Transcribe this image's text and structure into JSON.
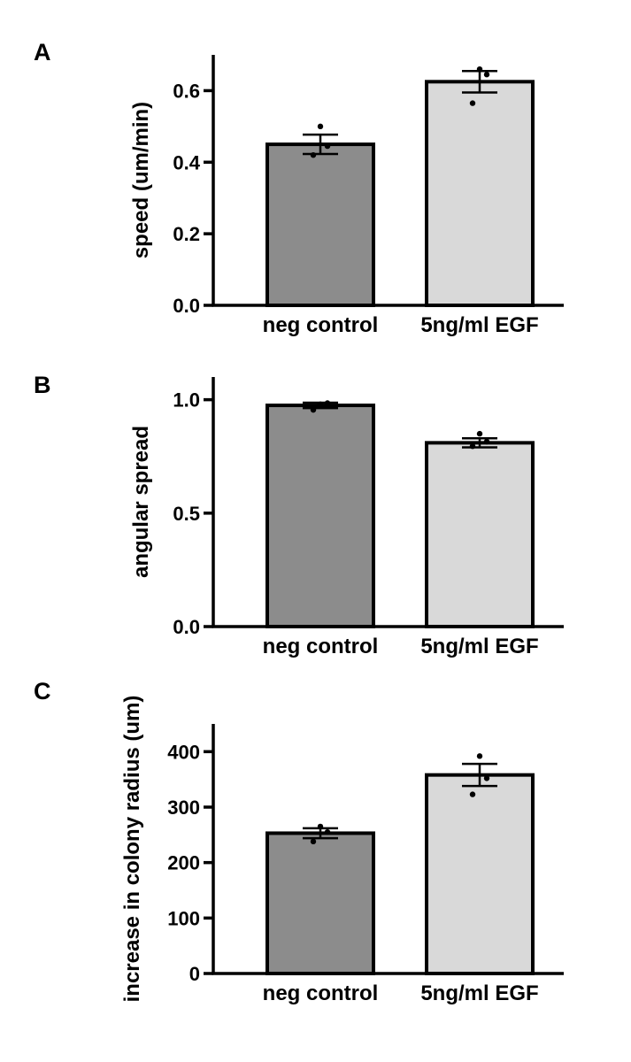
{
  "figure": {
    "panels": [
      "A",
      "B",
      "C"
    ]
  },
  "colors": {
    "bar_neg_control": "#8c8c8c",
    "bar_egf": "#d9d9d9",
    "stroke": "#000000"
  },
  "chart_data": [
    {
      "panel": "A",
      "type": "bar",
      "categories": [
        "neg control",
        "5ng/ml EGF"
      ],
      "values": [
        0.45,
        0.625
      ],
      "errors": [
        0.027,
        0.03
      ],
      "points": [
        [
          0.5,
          0.445,
          0.42
        ],
        [
          0.66,
          0.645,
          0.565
        ]
      ],
      "ylabel": "speed (um/min)",
      "xlabel": "",
      "ylim": [
        0,
        0.7
      ],
      "yticks": [
        0.0,
        0.2,
        0.4,
        0.6
      ],
      "tick_labels": [
        "0.0",
        "0.2",
        "0.4",
        "0.6"
      ],
      "grid": false
    },
    {
      "panel": "B",
      "type": "bar",
      "categories": [
        "neg control",
        "5ng/ml EGF"
      ],
      "values": [
        0.975,
        0.81
      ],
      "errors": [
        0.012,
        0.02
      ],
      "points": [
        [
          0.98,
          0.985,
          0.955
        ],
        [
          0.85,
          0.815,
          0.795
        ]
      ],
      "ylabel": "angular spread",
      "xlabel": "",
      "ylim": [
        0,
        1.1
      ],
      "yticks": [
        0.0,
        0.5,
        1.0
      ],
      "tick_labels": [
        "0.0",
        "0.5",
        "1.0"
      ],
      "grid": false
    },
    {
      "panel": "C",
      "type": "bar",
      "categories": [
        "neg control",
        "5ng/ml EGF"
      ],
      "values": [
        253,
        358
      ],
      "errors": [
        9,
        20
      ],
      "points": [
        [
          265,
          255,
          238
        ],
        [
          392,
          352,
          323
        ]
      ],
      "ylabel": "increase in colony radius (um)",
      "xlabel": "",
      "ylim": [
        0,
        450
      ],
      "yticks": [
        0,
        100,
        200,
        300,
        400
      ],
      "tick_labels": [
        "0",
        "100",
        "200",
        "300",
        "400"
      ],
      "grid": false
    }
  ]
}
